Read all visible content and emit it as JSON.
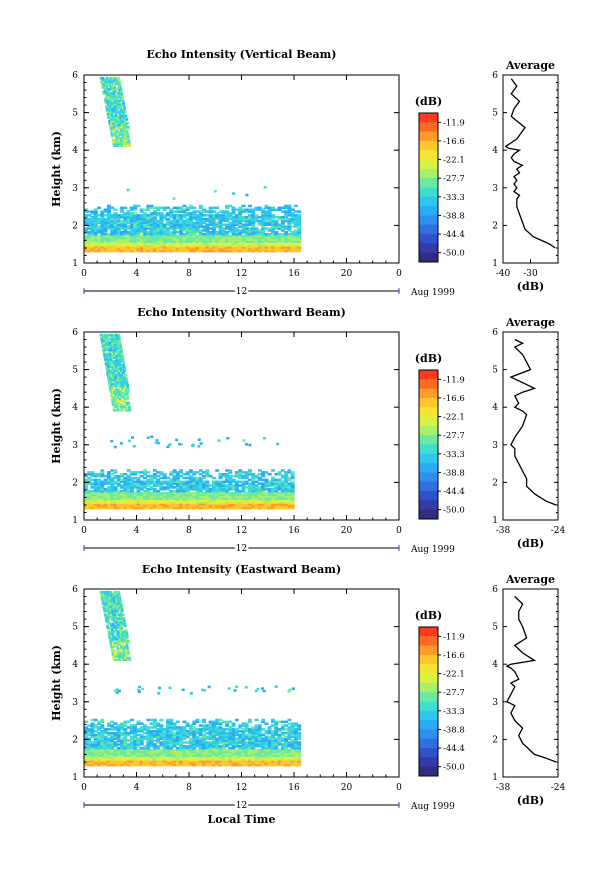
{
  "figure": {
    "xlabel": "Local Time",
    "date_label": "12",
    "date_suffix": "Aug 1999"
  },
  "colorbar": {
    "unit": "(dB)",
    "ticks": [
      "-11.9",
      "-16.6",
      "-22.1",
      "-27.7",
      "-33.3",
      "-38.8",
      "-44.4",
      "-50.0"
    ],
    "colors": [
      "#ff3b1d",
      "#ff6a22",
      "#ff9a2a",
      "#ffc62e",
      "#f6e632",
      "#dcf241",
      "#a8f06a",
      "#6ae9a2",
      "#3fdcd0",
      "#2dc7ef",
      "#2cabf5",
      "#2d8ff0",
      "#2f6fe2",
      "#3151c9",
      "#343aa8",
      "#2f2f80"
    ]
  },
  "chart_data": [
    {
      "type": "heatmap",
      "title": "Echo Intensity (Vertical Beam)",
      "ylabel": "Height (km)",
      "xlim": [
        0,
        24
      ],
      "ylim": [
        1,
        6
      ],
      "xticks": [
        "0",
        "4",
        "8",
        "12",
        "16",
        "20",
        "0"
      ],
      "yticks": [
        "1",
        "2",
        "3",
        "4",
        "5",
        "6"
      ],
      "value_range_db": [
        -50.0,
        -11.9
      ],
      "shapes": {
        "boundary_layer_top_km": 2.5,
        "boundary_layer_end_hour": 16.5,
        "fall_streak_hours": [
          1.0,
          3.5
        ],
        "fall_streak_km": [
          4.1,
          5.9
        ]
      }
    },
    {
      "type": "line",
      "title": "Average",
      "xlabel": "(dB)",
      "xlim": [
        -40,
        -20
      ],
      "ylim": [
        1,
        6
      ],
      "xticks": [
        "-40",
        "-30"
      ],
      "yticks": [
        "1",
        "2",
        "3",
        "4",
        "5",
        "6"
      ],
      "series": [
        {
          "x": [
            -21,
            -23,
            -26,
            -29,
            -32,
            -33,
            -34,
            -35,
            -35,
            -34,
            -36,
            -35,
            -36,
            -35,
            -36,
            -34,
            -35,
            -33,
            -36,
            -37,
            -36,
            -34,
            -38,
            -39,
            -35,
            -32,
            -37,
            -36,
            -34,
            -37,
            -35,
            -37
          ],
          "y": [
            1.4,
            1.5,
            1.6,
            1.7,
            1.9,
            2.1,
            2.3,
            2.5,
            2.7,
            2.8,
            2.9,
            3.0,
            3.1,
            3.2,
            3.3,
            3.4,
            3.5,
            3.6,
            3.7,
            3.8,
            3.9,
            4.0,
            4.05,
            4.1,
            4.3,
            4.6,
            4.9,
            5.1,
            5.3,
            5.5,
            5.7,
            5.9
          ]
        }
      ]
    },
    {
      "type": "heatmap",
      "title": "Echo Intensity (Northward Beam)",
      "ylabel": "Height (km)",
      "xlim": [
        0,
        24
      ],
      "ylim": [
        1,
        6
      ],
      "xticks": [
        "0",
        "4",
        "8",
        "12",
        "16",
        "20",
        "0"
      ],
      "yticks": [
        "1",
        "2",
        "3",
        "4",
        "5",
        "6"
      ],
      "value_range_db": [
        -50.0,
        -11.9
      ],
      "shapes": {
        "boundary_layer_top_km": 2.3,
        "boundary_layer_end_hour": 16.0,
        "fall_streak_hours": [
          1.0,
          3.5
        ],
        "fall_streak_km": [
          3.9,
          5.9
        ]
      }
    },
    {
      "type": "line",
      "title": "Average",
      "xlabel": "(dB)",
      "xlim": [
        -38,
        -24
      ],
      "ylim": [
        1,
        6
      ],
      "xticks": [
        "-38",
        "-24"
      ],
      "yticks": [
        "1",
        "2",
        "3",
        "4",
        "5",
        "6"
      ],
      "series": [
        {
          "x": [
            -24.5,
            -27,
            -30,
            -32,
            -32,
            -33,
            -34,
            -35,
            -35,
            -36,
            -35,
            -33,
            -32,
            -33,
            -35,
            -34,
            -35,
            -33,
            -30,
            -32,
            -36,
            -31,
            -32,
            -33,
            -34,
            -35,
            -33,
            -35
          ],
          "y": [
            1.4,
            1.5,
            1.7,
            1.9,
            2.1,
            2.3,
            2.5,
            2.7,
            2.9,
            3.0,
            3.2,
            3.5,
            3.8,
            3.9,
            4.0,
            4.1,
            4.3,
            4.4,
            4.5,
            4.6,
            4.8,
            5.0,
            5.2,
            5.4,
            5.5,
            5.6,
            5.7,
            5.8
          ]
        }
      ]
    },
    {
      "type": "heatmap",
      "title": "Echo Intensity (Eastward Beam)",
      "ylabel": "Height (km)",
      "xlim": [
        0,
        24
      ],
      "ylim": [
        1,
        6
      ],
      "xticks": [
        "0",
        "4",
        "8",
        "12",
        "16",
        "20",
        "0"
      ],
      "yticks": [
        "1",
        "2",
        "3",
        "4",
        "5",
        "6"
      ],
      "value_range_db": [
        -50.0,
        -11.9
      ],
      "shapes": {
        "boundary_layer_top_km": 2.5,
        "boundary_layer_end_hour": 16.5,
        "fall_streak_hours": [
          1.0,
          3.5
        ],
        "fall_streak_km": [
          4.1,
          5.9
        ]
      }
    },
    {
      "type": "line",
      "title": "Average",
      "xlabel": "(dB)",
      "xlim": [
        -38,
        -24
      ],
      "ylim": [
        1,
        6
      ],
      "xticks": [
        "-38",
        "-24"
      ],
      "yticks": [
        "1",
        "2",
        "3",
        "4",
        "5",
        "6"
      ],
      "series": [
        {
          "x": [
            -24.5,
            -27,
            -30,
            -33,
            -34,
            -33,
            -35,
            -36,
            -35,
            -37,
            -36,
            -35,
            -36,
            -34,
            -35,
            -36,
            -37,
            -36,
            -30,
            -33,
            -35,
            -32,
            -33,
            -34,
            -34,
            -33,
            -35
          ],
          "y": [
            1.4,
            1.5,
            1.6,
            1.9,
            2.1,
            2.3,
            2.5,
            2.7,
            2.9,
            3.0,
            3.2,
            3.4,
            3.5,
            3.6,
            3.8,
            3.9,
            3.95,
            4.0,
            4.1,
            4.3,
            4.5,
            4.7,
            5.0,
            5.2,
            5.4,
            5.6,
            5.8
          ]
        }
      ]
    }
  ]
}
